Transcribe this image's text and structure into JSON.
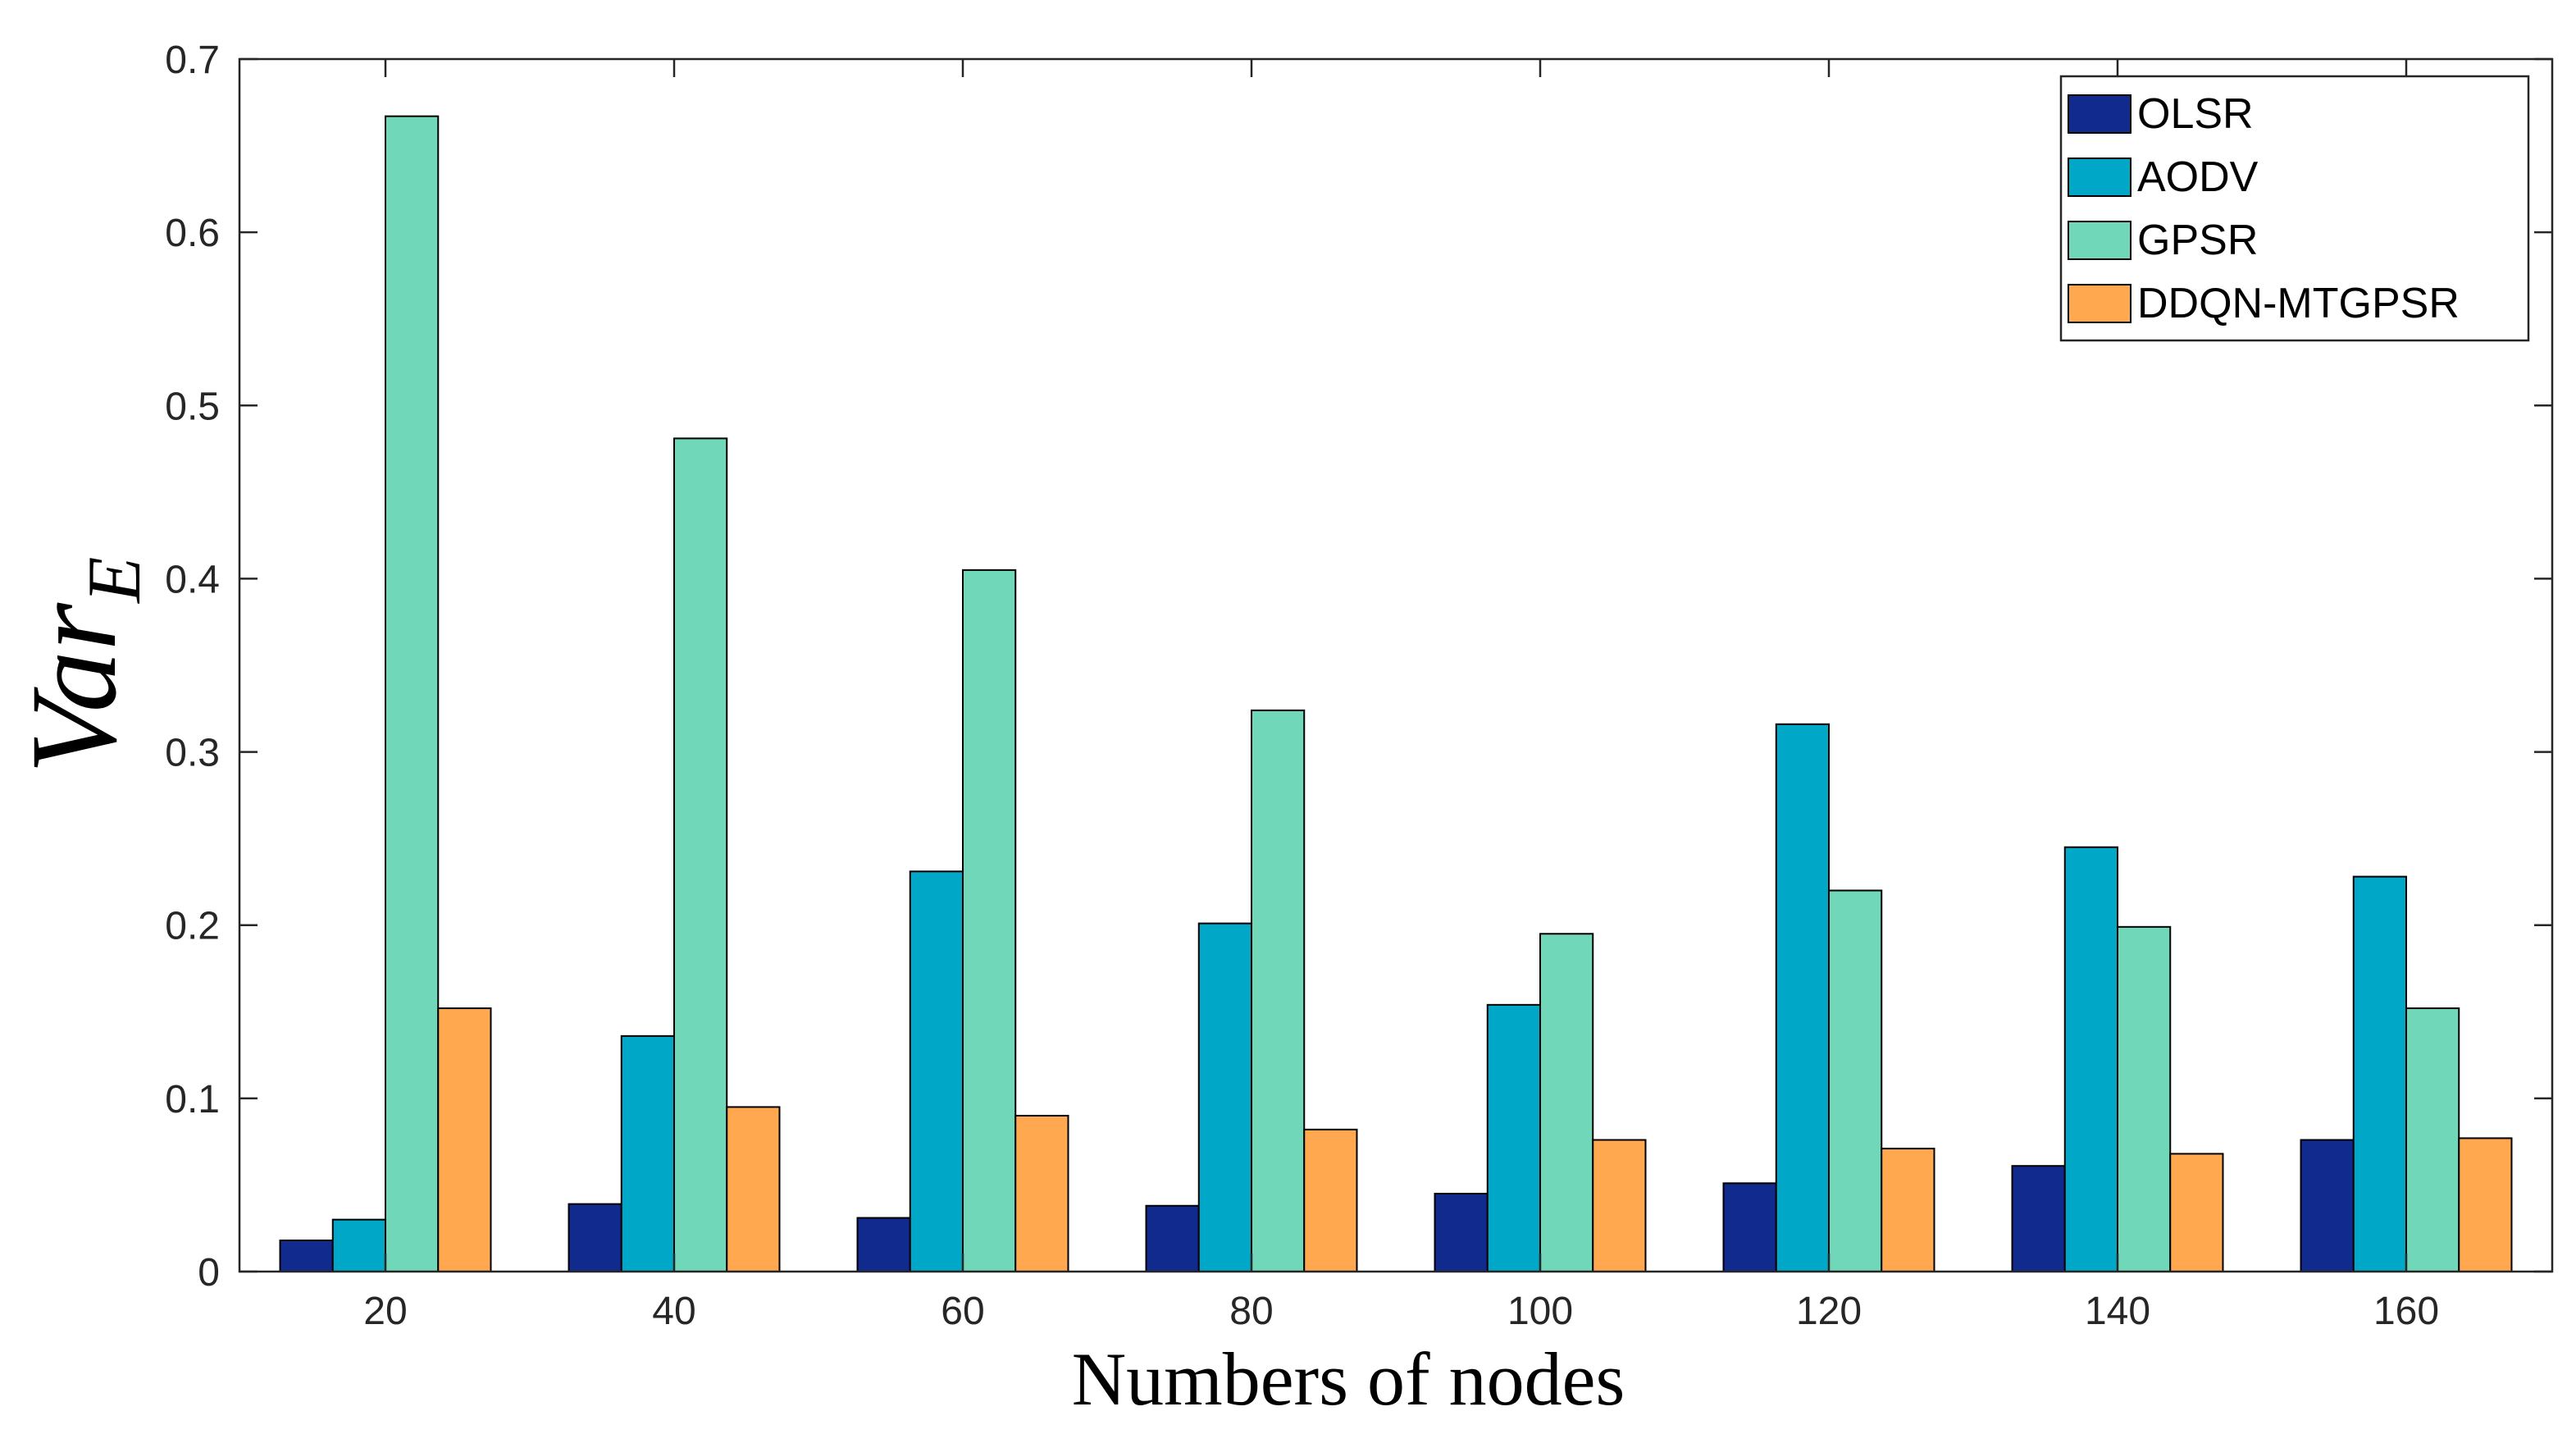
{
  "chart_data": {
    "type": "bar",
    "title": "",
    "xlabel": "Numbers of nodes",
    "ylabel": {
      "main": "Var",
      "subscript": "E"
    },
    "ylim": [
      0,
      0.7
    ],
    "yticks": [
      0,
      0.1,
      0.2,
      0.3,
      0.4,
      0.5,
      0.6,
      0.7
    ],
    "ytick_labels": [
      "0",
      "0.1",
      "0.2",
      "0.3",
      "0.4",
      "0.5",
      "0.6",
      "0.7"
    ],
    "categories": [
      "20",
      "40",
      "60",
      "80",
      "100",
      "120",
      "140",
      "160"
    ],
    "legend_position": "top-right",
    "grid": false,
    "series": [
      {
        "name": "OLSR",
        "color": "#112a8e",
        "values": [
          0.018,
          0.039,
          0.031,
          0.038,
          0.045,
          0.051,
          0.061,
          0.076
        ]
      },
      {
        "name": "AODV",
        "color": "#00a7c6",
        "values": [
          0.03,
          0.136,
          0.231,
          0.201,
          0.154,
          0.316,
          0.245,
          0.228
        ]
      },
      {
        "name": "GPSR",
        "color": "#70d8b8",
        "values": [
          0.667,
          0.481,
          0.405,
          0.324,
          0.195,
          0.22,
          0.199,
          0.152
        ]
      },
      {
        "name": "DDQN-MTGPSR",
        "color": "#ffa850",
        "values": [
          0.152,
          0.095,
          0.09,
          0.082,
          0.076,
          0.071,
          0.068,
          0.077
        ]
      }
    ]
  }
}
